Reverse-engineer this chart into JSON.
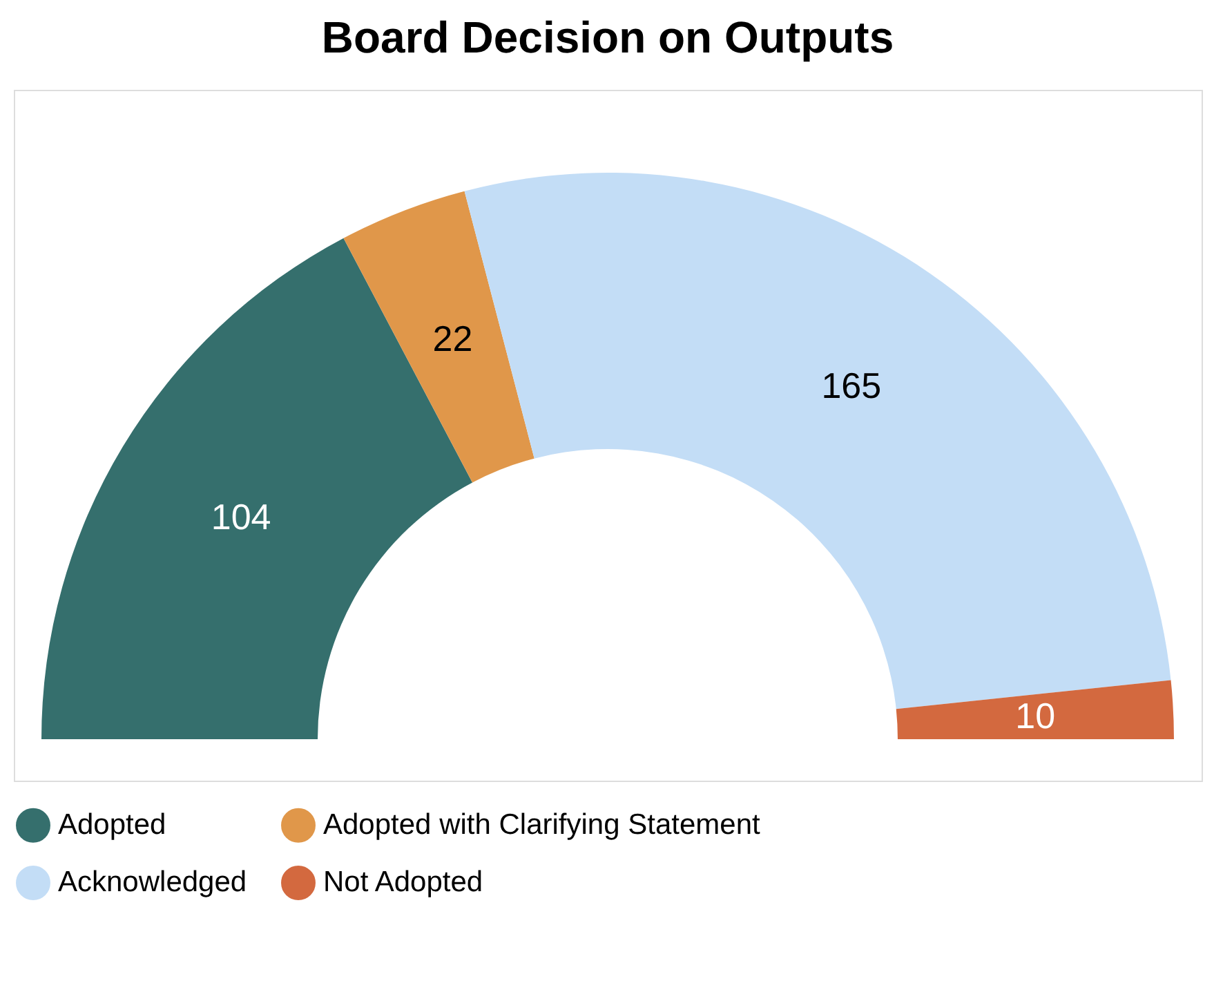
{
  "chart_data": {
    "type": "donut",
    "title": "Board Decision on Outputs",
    "categories": [
      "Adopted",
      "Adopted with Clarifying Statement",
      "Acknowledged",
      "Not Adopted"
    ],
    "values": [
      104,
      22,
      165,
      10
    ],
    "colors": [
      "#356f6d",
      "#e0974a",
      "#c3ddf6",
      "#d3693f"
    ],
    "data_labels": true,
    "legend": "bottom"
  }
}
